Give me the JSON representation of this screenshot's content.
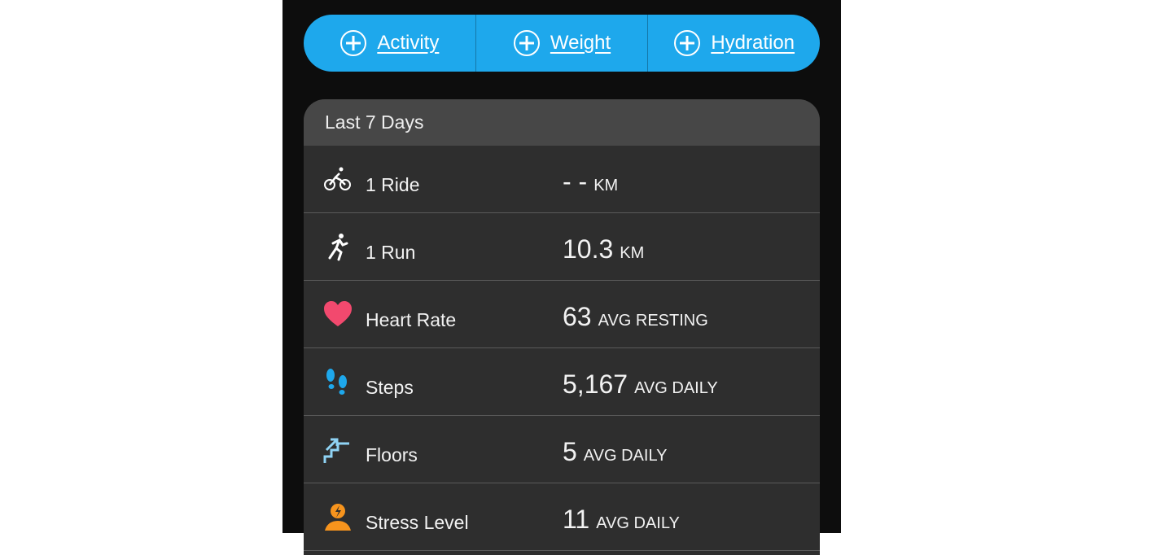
{
  "actions": [
    {
      "label": "Activity",
      "icon": "plus-circle-icon"
    },
    {
      "label": "Weight",
      "icon": "plus-circle-icon"
    },
    {
      "label": "Hydration",
      "icon": "plus-circle-icon"
    }
  ],
  "summary": {
    "title": "Last 7 Days",
    "rows": [
      {
        "icon": "bike-icon",
        "label": "1 Ride",
        "value": "- -",
        "unit": "KM"
      },
      {
        "icon": "run-icon",
        "label": "1 Run",
        "value": "10.3",
        "unit": "KM"
      },
      {
        "icon": "heart-icon",
        "label": "Heart Rate",
        "value": "63",
        "unit": "AVG RESTING"
      },
      {
        "icon": "steps-icon",
        "label": "Steps",
        "value": "5,167",
        "unit": "AVG DAILY"
      },
      {
        "icon": "floors-icon",
        "label": "Floors",
        "value": "5",
        "unit": "AVG DAILY"
      },
      {
        "icon": "stress-icon",
        "label": "Stress Level",
        "value": "11",
        "unit": "AVG DAILY"
      }
    ]
  },
  "colors": {
    "accent": "#1ea8ec",
    "heart": "#f2496e",
    "steps": "#1ea8ec",
    "floors": "#8fd3f4",
    "stress": "#f7941d"
  }
}
